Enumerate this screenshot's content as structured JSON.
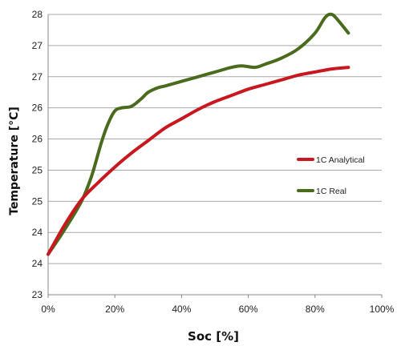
{
  "chart_data": {
    "type": "line",
    "xlabel": "Soc [%]",
    "ylabel": "Temperature [°C]",
    "x_ticks": [
      "0%",
      "20%",
      "40%",
      "60%",
      "80%",
      "100%"
    ],
    "y_ticks": [
      "23",
      "24",
      "24",
      "25",
      "25",
      "26",
      "26",
      "27",
      "27",
      "28"
    ],
    "xlim": [
      0,
      100
    ],
    "ylim": [
      0,
      9
    ],
    "grid": "horizontal",
    "legend_position": "right",
    "series": [
      {
        "name": "1C Analytical",
        "color": "#c8171e",
        "x": [
          0,
          5,
          10,
          15,
          20,
          25,
          30,
          35,
          40,
          45,
          50,
          55,
          60,
          65,
          70,
          75,
          80,
          85,
          90
        ],
        "y": [
          1.3,
          2.25,
          3.05,
          3.6,
          4.1,
          4.55,
          4.95,
          5.35,
          5.65,
          5.95,
          6.2,
          6.4,
          6.6,
          6.75,
          6.9,
          7.05,
          7.15,
          7.25,
          7.3
        ]
      },
      {
        "name": "1C Real",
        "color": "#4a6b1e",
        "x": [
          0,
          5,
          10,
          13,
          16,
          18,
          20,
          22,
          25,
          28,
          30,
          33,
          35,
          40,
          45,
          50,
          55,
          58,
          62,
          65,
          70,
          75,
          80,
          83,
          85,
          87,
          90
        ],
        "y": [
          1.3,
          2.1,
          3.0,
          3.8,
          4.9,
          5.5,
          5.9,
          6.0,
          6.05,
          6.3,
          6.5,
          6.65,
          6.7,
          6.85,
          7.0,
          7.15,
          7.3,
          7.35,
          7.3,
          7.4,
          7.6,
          7.9,
          8.4,
          8.9,
          9.0,
          8.8,
          8.4
        ]
      }
    ]
  }
}
